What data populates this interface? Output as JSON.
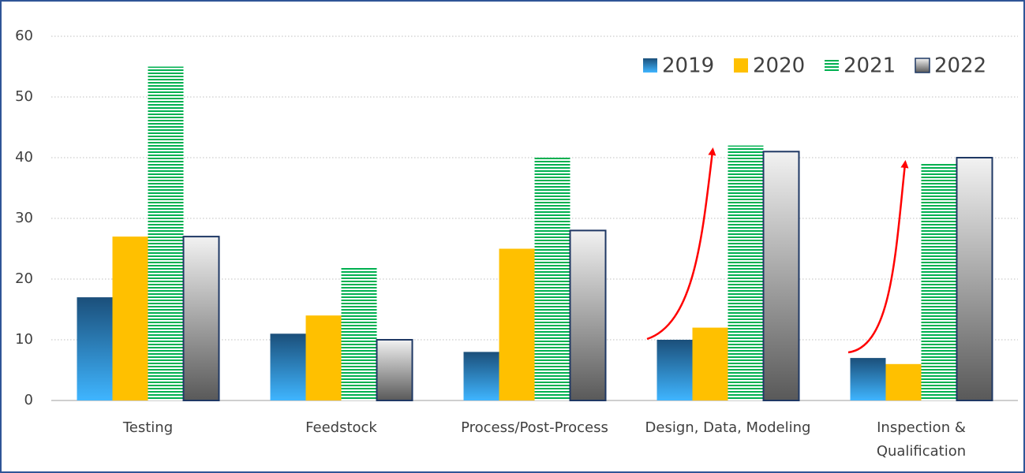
{
  "chart_data": {
    "type": "bar",
    "categories": [
      "Testing",
      "Feedstock",
      "Process/Post-Process",
      "Design, Data, Modeling",
      "Inspection &\nQualification"
    ],
    "series": [
      {
        "name": "2019",
        "color": "#2a8ad0",
        "gradient": [
          "#1b4f7a",
          "#3fb5ff"
        ],
        "values": [
          17,
          11,
          8,
          10,
          7
        ]
      },
      {
        "name": "2020",
        "color": "#ffc000",
        "values": [
          27,
          14,
          25,
          12,
          6
        ]
      },
      {
        "name": "2021",
        "color": "#00b050",
        "pattern": "stripes",
        "values": [
          55,
          22,
          40,
          42,
          39
        ]
      },
      {
        "name": "2022",
        "color": "#a6a6a6",
        "gradient": [
          "#f2f2f2",
          "#595959"
        ],
        "outline": "#1f3864",
        "values": [
          27,
          10,
          28,
          41,
          40
        ]
      }
    ],
    "ylim": [
      0,
      60
    ],
    "yticks": [
      0,
      10,
      20,
      30,
      40,
      50,
      60
    ],
    "grid": true,
    "legend": "top-right"
  }
}
